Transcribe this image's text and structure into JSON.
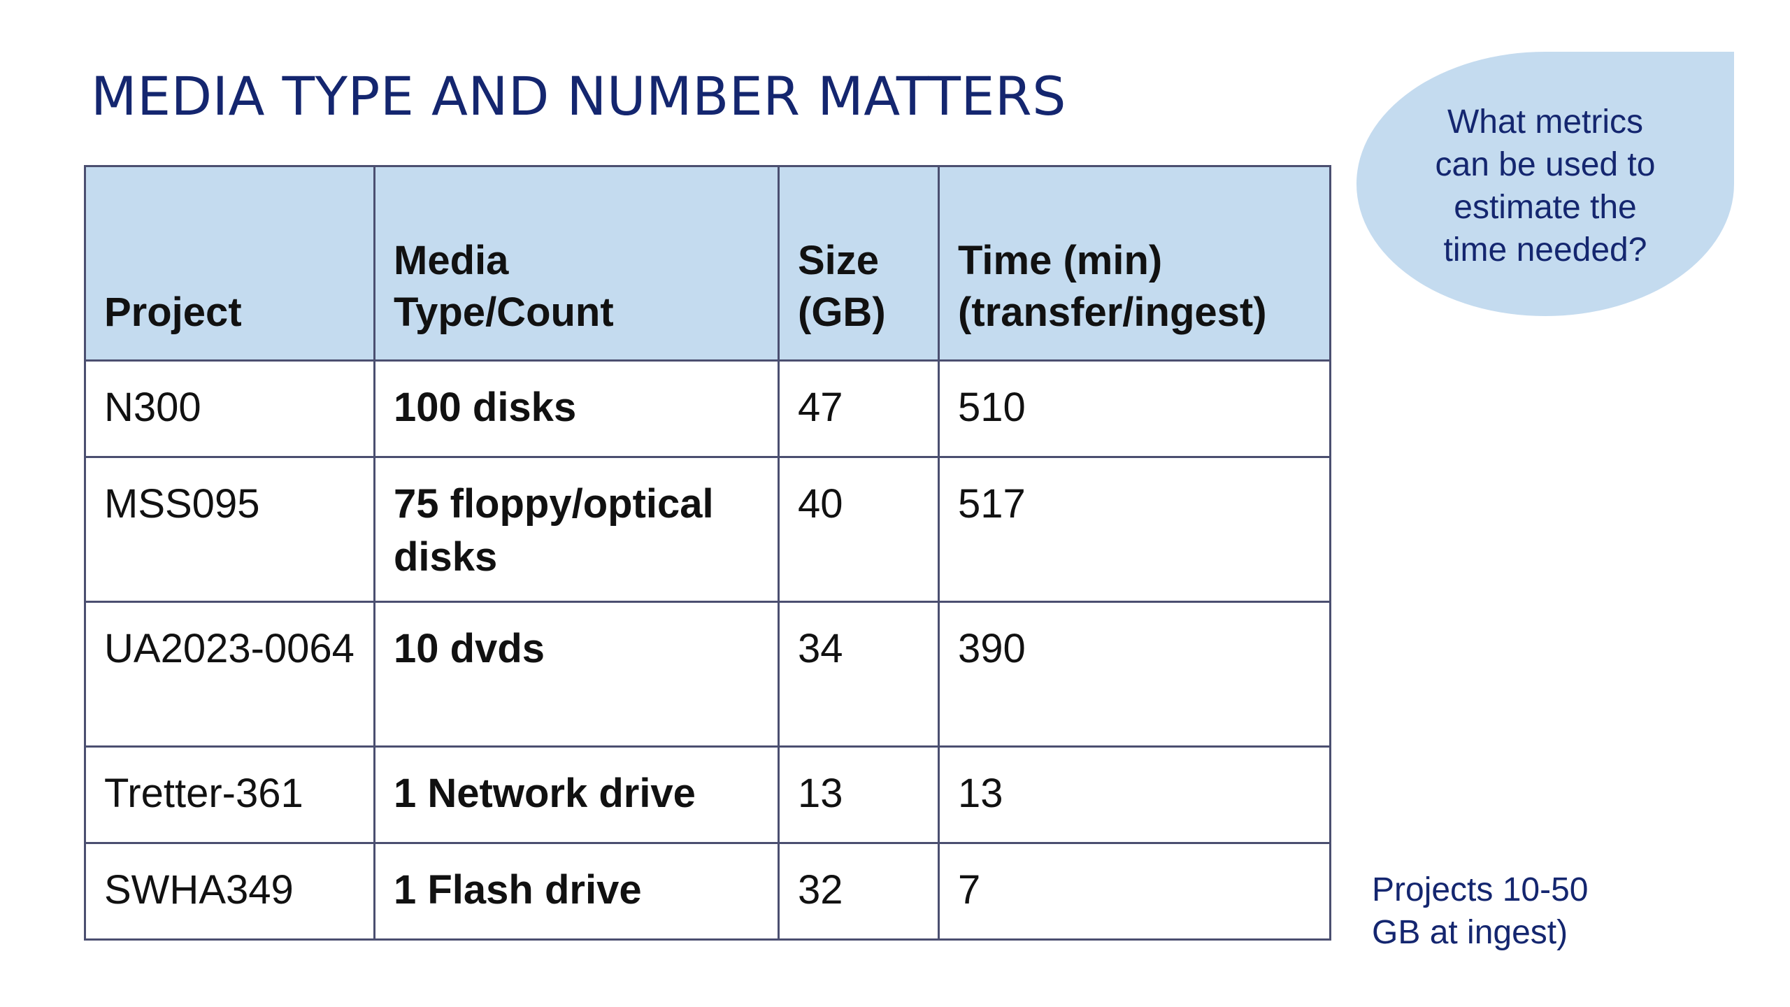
{
  "slide": {
    "title": "MEDIA TYPE AND NUMBER MATTERS"
  },
  "table": {
    "headers": {
      "project": "Project",
      "media_line1": "Media",
      "media_line2": "Type/Count",
      "size_line1": "Size",
      "size_line2": "(GB)",
      "time_line1": "Time (min)",
      "time_line2": "(transfer/ingest)"
    },
    "rows": [
      {
        "project": "N300",
        "media": "100 disks",
        "size": "47",
        "time": "510"
      },
      {
        "project": "MSS095",
        "media": "75 floppy/optical disks",
        "size": "40",
        "time": "517"
      },
      {
        "project": "UA2023-0064",
        "media": "10 dvds",
        "size": "34",
        "time": "390"
      },
      {
        "project": "Tretter-361",
        "media": "1 Network drive",
        "size": "13",
        "time": "13"
      },
      {
        "project": "SWHA349",
        "media": "1 Flash drive",
        "size": "32",
        "time": "7"
      }
    ]
  },
  "callout": {
    "line1": "What metrics",
    "line2": "can be used to",
    "line3": "estimate the",
    "line4": "time needed?"
  },
  "side_note": {
    "line1": "Projects 10-50",
    "line2": "GB at ingest)"
  },
  "colors": {
    "title": "#14266f",
    "header_fill": "#c4dbef",
    "callout_fill": "#c4dbef",
    "border": "#4b4f70"
  }
}
